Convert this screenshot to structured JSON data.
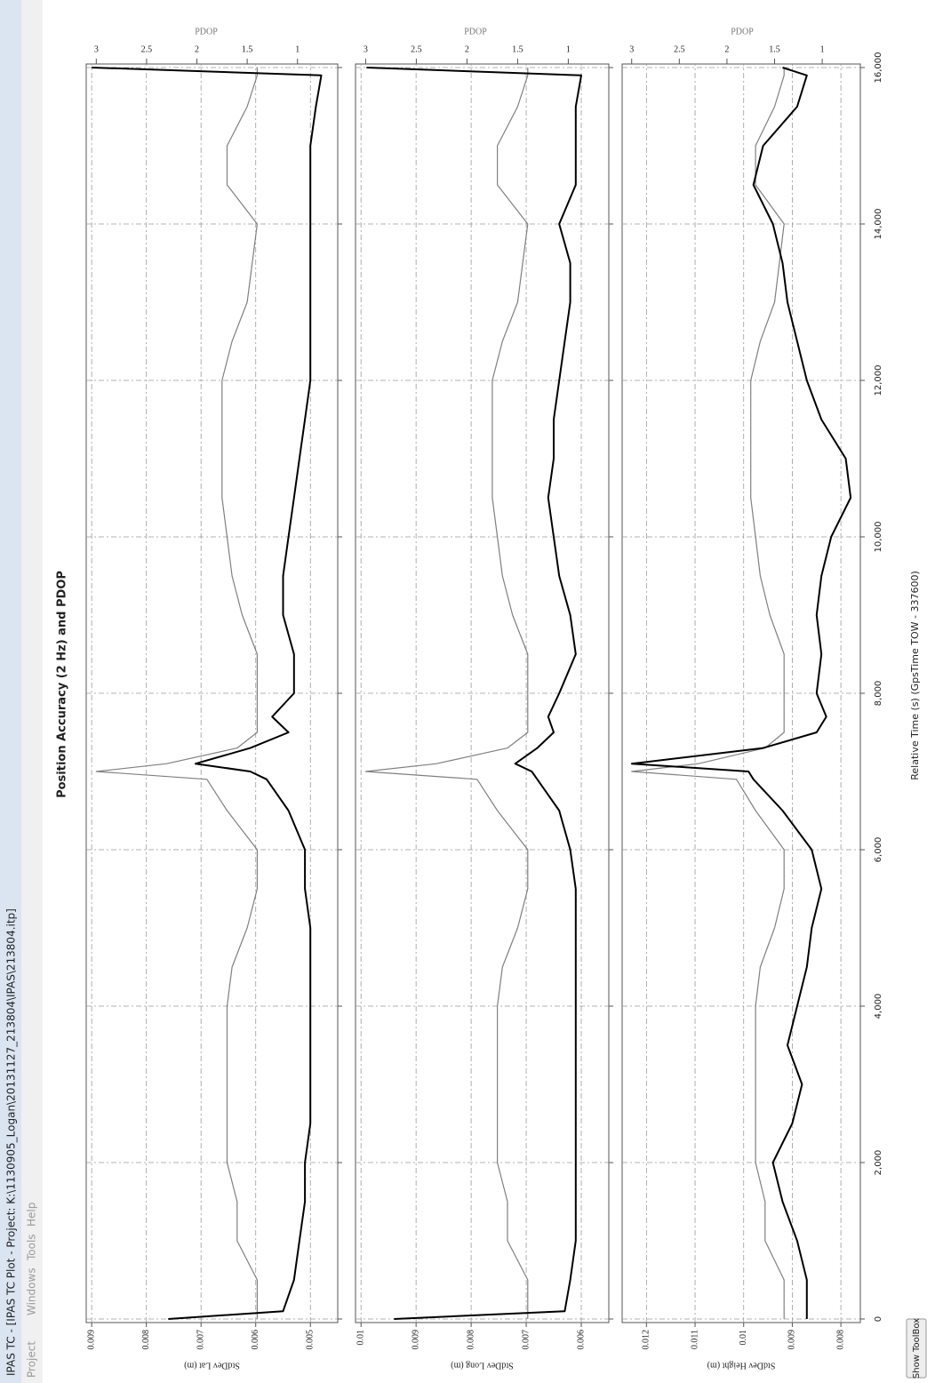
{
  "window": {
    "title": "IPAS TC - [IPAS TC Plot - Project: K:\\1130905_Logan\\20131127_213804\\IPAS\\213804.itp]",
    "menu": [
      "Project",
      "Windows",
      "Tools",
      "Help"
    ]
  },
  "figure_title": "Position Accuracy (2 Hz) and PDOP",
  "button": "Show ToolBox",
  "chart_data": [
    {
      "type": "line",
      "ylabel": "StdDev Lat (m)",
      "y2label": "PDOP",
      "xlim": [
        0,
        16000
      ],
      "ylim": [
        0.0045,
        0.0091
      ],
      "yticks": [
        0.005,
        0.006,
        0.007,
        0.008,
        0.009
      ],
      "y2lim": [
        0.6,
        3.1
      ],
      "y2ticks": [
        1,
        1.5,
        2,
        2.5,
        3
      ],
      "grid": true,
      "x": [
        0,
        100,
        500,
        1000,
        1500,
        2000,
        2500,
        3000,
        3500,
        4000,
        4500,
        5000,
        5500,
        6000,
        6500,
        6900,
        7000,
        7100,
        7300,
        7500,
        7700,
        8000,
        8500,
        9000,
        9500,
        10000,
        10500,
        11000,
        11500,
        12000,
        12500,
        13000,
        13500,
        14000,
        14500,
        15000,
        15500,
        15900,
        16000
      ],
      "series": [
        {
          "color": "#000000",
          "values": [
            0.0076,
            0.0055,
            0.0053,
            0.0052,
            0.0051,
            0.0051,
            0.005,
            0.005,
            0.005,
            0.005,
            0.005,
            0.005,
            0.0051,
            0.0051,
            0.0054,
            0.0058,
            0.0061,
            0.0071,
            0.0061,
            0.0054,
            0.0057,
            0.0053,
            0.0053,
            0.0055,
            0.0055,
            0.0054,
            0.0053,
            0.0052,
            0.0051,
            0.005,
            0.005,
            0.005,
            0.005,
            0.005,
            0.005,
            0.005,
            0.0049,
            0.0048,
            0.009
          ]
        },
        {
          "color": "#808080",
          "axis": "y2",
          "values": [
            1.4,
            1.4,
            1.4,
            1.6,
            1.6,
            1.7,
            1.7,
            1.7,
            1.7,
            1.7,
            1.65,
            1.5,
            1.4,
            1.4,
            1.7,
            1.9,
            3.0,
            2.3,
            1.6,
            1.4,
            1.4,
            1.4,
            1.4,
            1.55,
            1.65,
            1.7,
            1.75,
            1.75,
            1.75,
            1.75,
            1.65,
            1.5,
            1.45,
            1.4,
            1.7,
            1.7,
            1.5,
            1.4,
            1.4
          ]
        }
      ]
    },
    {
      "type": "line",
      "ylabel": "StdDev Long (m)",
      "y2label": "PDOP",
      "xlim": [
        0,
        16000
      ],
      "ylim": [
        0.0055,
        0.0101
      ],
      "yticks": [
        0.006,
        0.007,
        0.008,
        0.009,
        0.01
      ],
      "y2lim": [
        0.6,
        3.1
      ],
      "y2ticks": [
        1,
        1.5,
        2,
        2.5,
        3
      ],
      "grid": true,
      "x": [
        0,
        100,
        500,
        1000,
        1500,
        2000,
        2500,
        3000,
        3500,
        4000,
        4500,
        5000,
        5500,
        6000,
        6500,
        6900,
        7000,
        7100,
        7300,
        7500,
        7700,
        8000,
        8500,
        9000,
        9500,
        10000,
        10500,
        11000,
        11500,
        12000,
        12500,
        13000,
        13500,
        14000,
        14500,
        15000,
        15500,
        15900,
        16000
      ],
      "series": [
        {
          "color": "#000000",
          "values": [
            0.0094,
            0.0063,
            0.0062,
            0.0061,
            0.0061,
            0.0061,
            0.0061,
            0.0061,
            0.0061,
            0.0061,
            0.0061,
            0.0061,
            0.0061,
            0.0062,
            0.0064,
            0.0068,
            0.0069,
            0.0072,
            0.0068,
            0.0065,
            0.0066,
            0.0064,
            0.0061,
            0.0062,
            0.0064,
            0.0065,
            0.0066,
            0.0065,
            0.0065,
            0.0064,
            0.0063,
            0.0062,
            0.0062,
            0.0064,
            0.0061,
            0.0061,
            0.0061,
            0.006,
            0.0099
          ]
        },
        {
          "color": "#808080",
          "axis": "y2",
          "values": [
            1.4,
            1.4,
            1.4,
            1.6,
            1.6,
            1.7,
            1.7,
            1.7,
            1.7,
            1.7,
            1.65,
            1.5,
            1.4,
            1.4,
            1.7,
            1.9,
            3.0,
            2.3,
            1.6,
            1.4,
            1.4,
            1.4,
            1.4,
            1.55,
            1.65,
            1.7,
            1.75,
            1.75,
            1.75,
            1.75,
            1.65,
            1.5,
            1.45,
            1.4,
            1.7,
            1.7,
            1.5,
            1.4,
            1.4
          ]
        }
      ]
    },
    {
      "type": "line",
      "ylabel": "StdDev Height (m)",
      "y2label": "PDOP",
      "xlabel": "Relative Time (s) (GpsTime TOW - 337600)",
      "xlim": [
        0,
        16000
      ],
      "xticks": [
        0,
        {
          "value": 2000,
          "label": "2,000"
        },
        {
          "value": 4000,
          "label": "4,000"
        },
        {
          "value": 6000,
          "label": "6,000"
        },
        {
          "value": 8000,
          "label": "8,000"
        },
        {
          "value": 10000,
          "label": "10,000"
        },
        {
          "value": 12000,
          "label": "12,000"
        },
        {
          "value": 14000,
          "label": "14,000"
        },
        {
          "value": 16000,
          "label": "16,000"
        }
      ],
      "ylim": [
        0.0076,
        0.0125
      ],
      "yticks": [
        0.008,
        0.009,
        0.01,
        0.011,
        0.012
      ],
      "y2lim": [
        0.6,
        3.1
      ],
      "y2ticks": [
        1,
        1.5,
        2,
        2.5,
        3
      ],
      "grid": true,
      "x": [
        0,
        100,
        500,
        1000,
        1500,
        2000,
        2500,
        3000,
        3500,
        4000,
        4500,
        5000,
        5500,
        6000,
        6500,
        6900,
        7000,
        7100,
        7300,
        7500,
        7700,
        8000,
        8500,
        9000,
        9500,
        10000,
        10500,
        11000,
        11500,
        12000,
        12500,
        13000,
        13500,
        14000,
        14500,
        15000,
        15500,
        15900,
        16000
      ],
      "series": [
        {
          "color": "#000000",
          "values": [
            0.0087,
            0.0087,
            0.0087,
            0.0089,
            0.0092,
            0.0094,
            0.009,
            0.0088,
            0.0091,
            0.0089,
            0.0087,
            0.0086,
            0.0084,
            0.0086,
            0.0092,
            0.0098,
            0.0099,
            0.0123,
            0.0096,
            0.0085,
            0.0083,
            0.0085,
            0.0084,
            0.0085,
            0.0084,
            0.0082,
            0.0078,
            0.0079,
            0.0084,
            0.0087,
            0.0089,
            0.0091,
            0.0092,
            0.0094,
            0.0098,
            0.0096,
            0.0089,
            0.0087,
            0.0092
          ]
        },
        {
          "color": "#808080",
          "axis": "y2",
          "values": [
            1.4,
            1.4,
            1.4,
            1.6,
            1.6,
            1.7,
            1.7,
            1.7,
            1.7,
            1.7,
            1.65,
            1.5,
            1.4,
            1.4,
            1.7,
            1.9,
            3.0,
            2.3,
            1.6,
            1.4,
            1.4,
            1.4,
            1.4,
            1.55,
            1.65,
            1.7,
            1.75,
            1.75,
            1.75,
            1.75,
            1.65,
            1.5,
            1.45,
            1.4,
            1.7,
            1.7,
            1.5,
            1.4,
            1.4
          ]
        }
      ]
    }
  ]
}
